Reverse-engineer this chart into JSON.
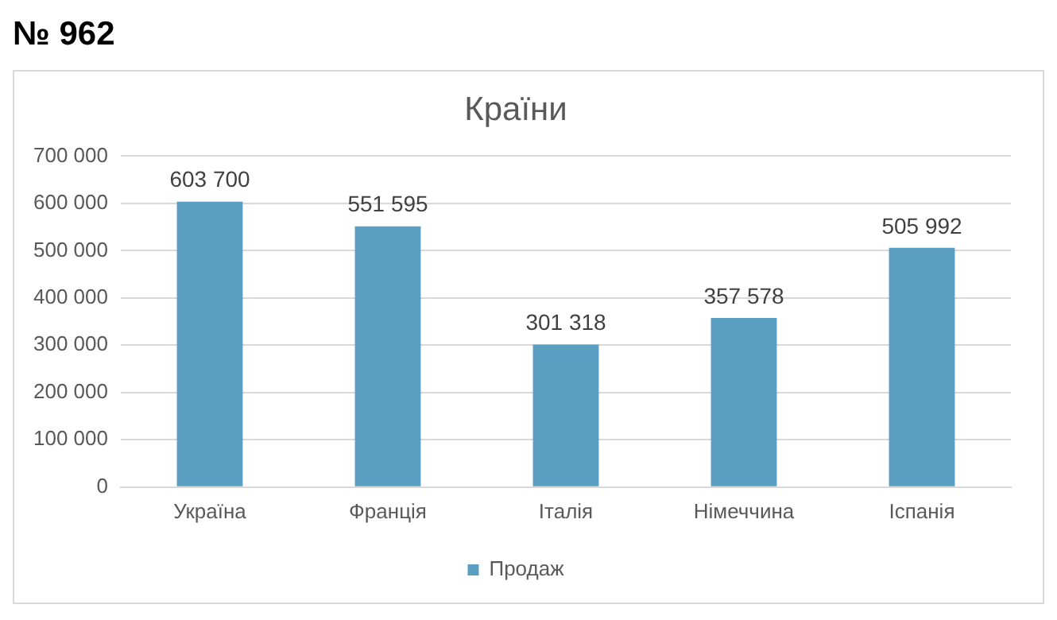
{
  "chart_data": {
    "type": "bar",
    "title": "Країни",
    "annotations": [
      "№ 962"
    ],
    "categories": [
      "Україна",
      "Франція",
      "Італія",
      "Німеччина",
      "Іспанія"
    ],
    "series": [
      {
        "name": "Продаж",
        "color": "#5a9fc2",
        "values": [
          603700,
          551595,
          301318,
          357578,
          505992
        ],
        "value_labels": [
          "603 700",
          "551 595",
          "301 318",
          "357 578",
          "505 992"
        ]
      }
    ],
    "ylim": [
      0,
      700000
    ],
    "yticks": [
      {
        "value": 0,
        "label": "0"
      },
      {
        "value": 100000,
        "label": "100 000"
      },
      {
        "value": 200000,
        "label": "200 000"
      },
      {
        "value": 300000,
        "label": "300 000"
      },
      {
        "value": 400000,
        "label": "400 000"
      },
      {
        "value": 500000,
        "label": "500 000"
      },
      {
        "value": 600000,
        "label": "600 000"
      },
      {
        "value": 700000,
        "label": "700 000"
      }
    ],
    "grid": "y",
    "legend": "bottom"
  }
}
